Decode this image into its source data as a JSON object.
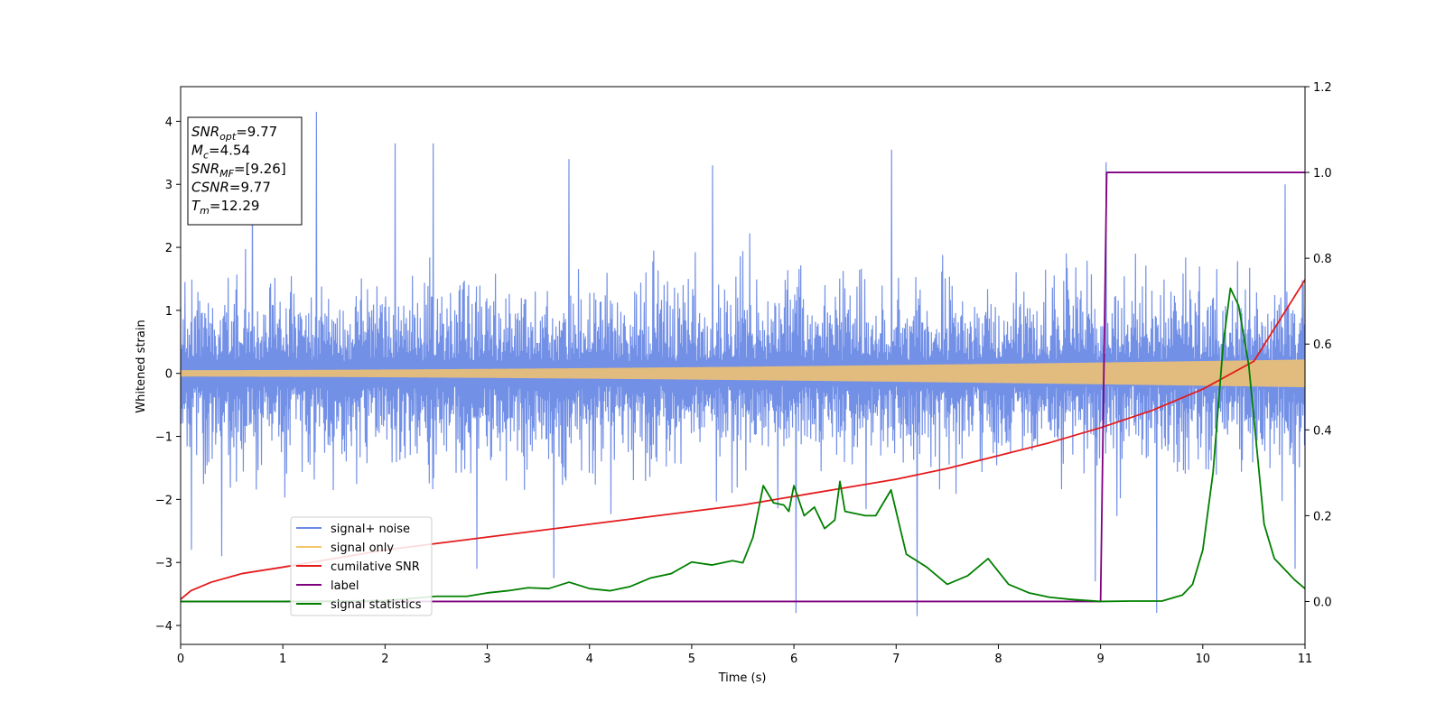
{
  "chart_data": {
    "type": "line",
    "title": "",
    "xlabel": "Time (s)",
    "ylabel": "Whitened strain",
    "xlim": [
      0,
      11
    ],
    "ylim": [
      -4.3,
      4.55
    ],
    "y2lim": [
      -0.1,
      1.2
    ],
    "x_ticks": [
      0,
      1,
      2,
      3,
      4,
      5,
      6,
      7,
      8,
      9,
      10,
      11
    ],
    "x_tick_labels": [
      "0",
      "1",
      "2",
      "3",
      "4",
      "5",
      "6",
      "7",
      "8",
      "9",
      "10",
      "11"
    ],
    "y_ticks": [
      -4,
      -3,
      -2,
      -1,
      0,
      1,
      2,
      3,
      4
    ],
    "y_tick_labels": [
      "−4",
      "−3",
      "−2",
      "−1",
      "0",
      "1",
      "2",
      "3",
      "4"
    ],
    "y2_ticks": [
      0.0,
      0.2,
      0.4,
      0.6,
      0.8,
      1.0,
      1.2
    ],
    "y2_tick_labels": [
      "0.0",
      "0.2",
      "0.4",
      "0.6",
      "0.8",
      "1.0",
      "1.2"
    ],
    "legend_position": "lower-left",
    "series": [
      {
        "name": "signal+ noise",
        "axis": "left",
        "color": "#6b8ae6",
        "kind": "noise",
        "envelope_typical": 1.5,
        "spikes": [
          {
            "x": 1.33,
            "y": 4.15
          },
          {
            "x": 2.1,
            "y": 3.65
          },
          {
            "x": 2.47,
            "y": 3.65
          },
          {
            "x": 3.8,
            "y": 3.4
          },
          {
            "x": 6.95,
            "y": 3.55
          },
          {
            "x": 9.05,
            "y": 3.35
          },
          {
            "x": 10.8,
            "y": 3.0
          },
          {
            "x": 6.02,
            "y": -3.8
          },
          {
            "x": 7.2,
            "y": -3.85
          },
          {
            "x": 9.55,
            "y": -3.8
          },
          {
            "x": 3.65,
            "y": -3.25
          },
          {
            "x": 8.95,
            "y": -3.3
          },
          {
            "x": 0.1,
            "y": -2.8
          },
          {
            "x": 0.4,
            "y": -2.9
          },
          {
            "x": 2.9,
            "y": -3.1
          },
          {
            "x": 10.9,
            "y": -3.1
          },
          {
            "x": 5.2,
            "y": 3.3
          },
          {
            "x": 0.7,
            "y": 3.1
          }
        ]
      },
      {
        "name": "signal only",
        "axis": "left",
        "color": "#f5c46b",
        "kind": "chirp",
        "amplitude_start": 0.05,
        "amplitude_end": 0.22
      },
      {
        "name": "cumilative SNR",
        "axis": "right",
        "color": "#e41a1c",
        "x": [
          0,
          0.1,
          0.3,
          0.6,
          1,
          1.5,
          2,
          2.5,
          3,
          3.5,
          4,
          4.5,
          5,
          5.5,
          6,
          6.5,
          7,
          7.5,
          8,
          8.5,
          9,
          9.5,
          10,
          10.5,
          11
        ],
        "y": [
          0.005,
          0.025,
          0.045,
          0.065,
          0.08,
          0.1,
          0.12,
          0.135,
          0.15,
          0.165,
          0.18,
          0.195,
          0.21,
          0.225,
          0.245,
          0.265,
          0.285,
          0.31,
          0.34,
          0.37,
          0.405,
          0.445,
          0.495,
          0.56,
          0.75
        ]
      },
      {
        "name": "label",
        "axis": "right",
        "color": "#800080",
        "x": [
          0,
          9.0,
          9.06,
          11
        ],
        "y": [
          0,
          0,
          1,
          1
        ]
      },
      {
        "name": "signal statistics",
        "axis": "right",
        "color": "#008000",
        "x": [
          0,
          0.5,
          1,
          1.5,
          2,
          2.5,
          2.8,
          3,
          3.2,
          3.4,
          3.6,
          3.8,
          4,
          4.2,
          4.4,
          4.6,
          4.8,
          5,
          5.2,
          5.4,
          5.5,
          5.6,
          5.7,
          5.8,
          5.9,
          5.95,
          6,
          6.1,
          6.2,
          6.3,
          6.4,
          6.45,
          6.5,
          6.7,
          6.8,
          6.95,
          7.1,
          7.3,
          7.5,
          7.7,
          7.8,
          7.9,
          8.1,
          8.3,
          8.5,
          8.7,
          9,
          9.3,
          9.6,
          9.8,
          9.9,
          10,
          10.1,
          10.2,
          10.27,
          10.35,
          10.45,
          10.6,
          10.7,
          10.9,
          11
        ],
        "y": [
          0,
          0,
          0,
          0.001,
          0.002,
          0.012,
          0.012,
          0.02,
          0.025,
          0.032,
          0.03,
          0.045,
          0.03,
          0.025,
          0.035,
          0.055,
          0.065,
          0.092,
          0.085,
          0.095,
          0.09,
          0.15,
          0.27,
          0.23,
          0.225,
          0.21,
          0.27,
          0.2,
          0.22,
          0.17,
          0.19,
          0.28,
          0.21,
          0.2,
          0.2,
          0.26,
          0.11,
          0.08,
          0.04,
          0.06,
          0.08,
          0.1,
          0.04,
          0.02,
          0.01,
          0.005,
          0,
          0.001,
          0.001,
          0.015,
          0.04,
          0.12,
          0.3,
          0.6,
          0.73,
          0.69,
          0.55,
          0.18,
          0.1,
          0.05,
          0.03
        ]
      }
    ],
    "annotation": {
      "lines": [
        {
          "base": "SNR",
          "sub": "opt",
          "value": "=9.77"
        },
        {
          "base": "M",
          "sub": "c",
          "value": "=4.54"
        },
        {
          "base": "SNR",
          "sub": "MF",
          "value": "=[9.26]"
        },
        {
          "base": "CSNR",
          "sub": "",
          "value": "=9.77"
        },
        {
          "base": "T",
          "sub": "m",
          "value": "=12.29"
        }
      ]
    }
  }
}
